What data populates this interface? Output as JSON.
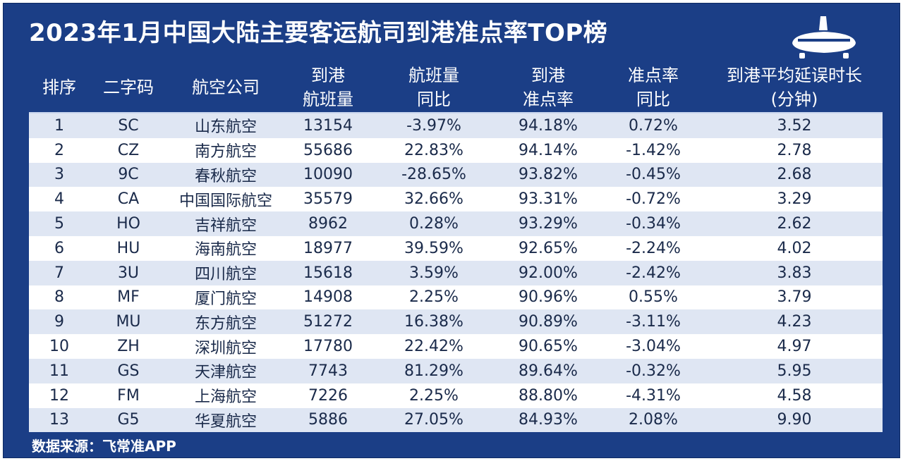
{
  "title": "2023年1月中国大陆主要客运航司到港准点率TOP榜",
  "icon": "airplane-icon",
  "colors": {
    "background": "#1b3e86",
    "row_alt": "#dfe6f3",
    "row": "#ffffff"
  },
  "headers": [
    [
      "排序"
    ],
    [
      "二字码"
    ],
    [
      "航空公司"
    ],
    [
      "到港",
      "航班量"
    ],
    [
      "航班量",
      "同比"
    ],
    [
      "到港",
      "准点率"
    ],
    [
      "准点率",
      "同比"
    ],
    [
      "到港平均延误时长",
      "(分钟)"
    ]
  ],
  "rows": [
    [
      "1",
      "SC",
      "山东航空",
      "13154",
      "-3.97%",
      "94.18%",
      "0.72%",
      "3.52"
    ],
    [
      "2",
      "CZ",
      "南方航空",
      "55686",
      "22.83%",
      "94.14%",
      "-1.42%",
      "2.78"
    ],
    [
      "3",
      "9C",
      "春秋航空",
      "10090",
      "-28.65%",
      "93.82%",
      "-0.45%",
      "2.68"
    ],
    [
      "4",
      "CA",
      "中国国际航空",
      "35579",
      "32.66%",
      "93.31%",
      "-0.72%",
      "3.29"
    ],
    [
      "5",
      "HO",
      "吉祥航空",
      "8962",
      "0.28%",
      "93.29%",
      "-0.34%",
      "2.62"
    ],
    [
      "6",
      "HU",
      "海南航空",
      "18977",
      "39.59%",
      "92.65%",
      "-2.24%",
      "4.02"
    ],
    [
      "7",
      "3U",
      "四川航空",
      "15618",
      "3.59%",
      "92.00%",
      "-2.42%",
      "3.83"
    ],
    [
      "8",
      "MF",
      "厦门航空",
      "14908",
      "2.25%",
      "90.96%",
      "0.55%",
      "3.79"
    ],
    [
      "9",
      "MU",
      "东方航空",
      "51272",
      "16.38%",
      "90.89%",
      "-3.11%",
      "4.23"
    ],
    [
      "10",
      "ZH",
      "深圳航空",
      "17780",
      "22.42%",
      "90.65%",
      "-3.04%",
      "4.97"
    ],
    [
      "11",
      "GS",
      "天津航空",
      "7743",
      "81.29%",
      "89.64%",
      "-0.32%",
      "5.95"
    ],
    [
      "12",
      "FM",
      "上海航空",
      "7226",
      "2.25%",
      "88.80%",
      "-4.31%",
      "4.58"
    ],
    [
      "13",
      "G5",
      "华夏航空",
      "5886",
      "27.05%",
      "84.93%",
      "2.08%",
      "9.90"
    ]
  ],
  "footer": "数据来源：飞常准APP"
}
